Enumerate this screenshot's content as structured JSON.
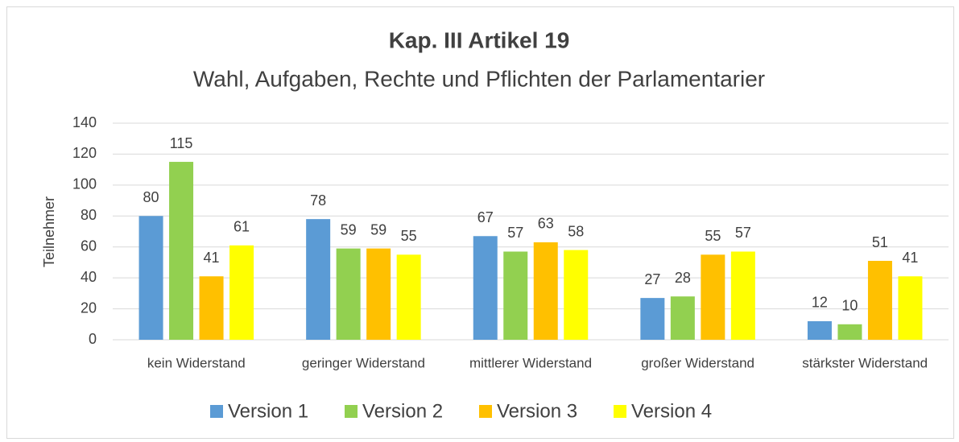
{
  "chart_data": {
    "type": "bar",
    "title": "Kap. III Artikel 19",
    "subtitle": "Wahl, Aufgaben, Rechte und Pflichten der Parlamentarier",
    "y_label": "Teilnehmer",
    "categories": [
      "kein Widerstand",
      "geringer Widerstand",
      "mittlerer Widerstand",
      "großer Widerstand",
      "stärkster Widerstand"
    ],
    "series": [
      {
        "name": "Version 1",
        "color": "#5b9bd5",
        "values": [
          80,
          78,
          67,
          27,
          12
        ]
      },
      {
        "name": "Version 2",
        "color": "#92d050",
        "values": [
          115,
          59,
          57,
          28,
          10
        ]
      },
      {
        "name": "Version 3",
        "color": "#ffc000",
        "values": [
          41,
          59,
          63,
          55,
          51
        ]
      },
      {
        "name": "Version 4",
        "color": "#ffff00",
        "values": [
          61,
          55,
          58,
          57,
          41
        ]
      }
    ],
    "ylim": [
      0,
      140
    ],
    "yticks": [
      0,
      20,
      40,
      60,
      80,
      100,
      120,
      140
    ],
    "grid": true,
    "legend": "bottom"
  }
}
